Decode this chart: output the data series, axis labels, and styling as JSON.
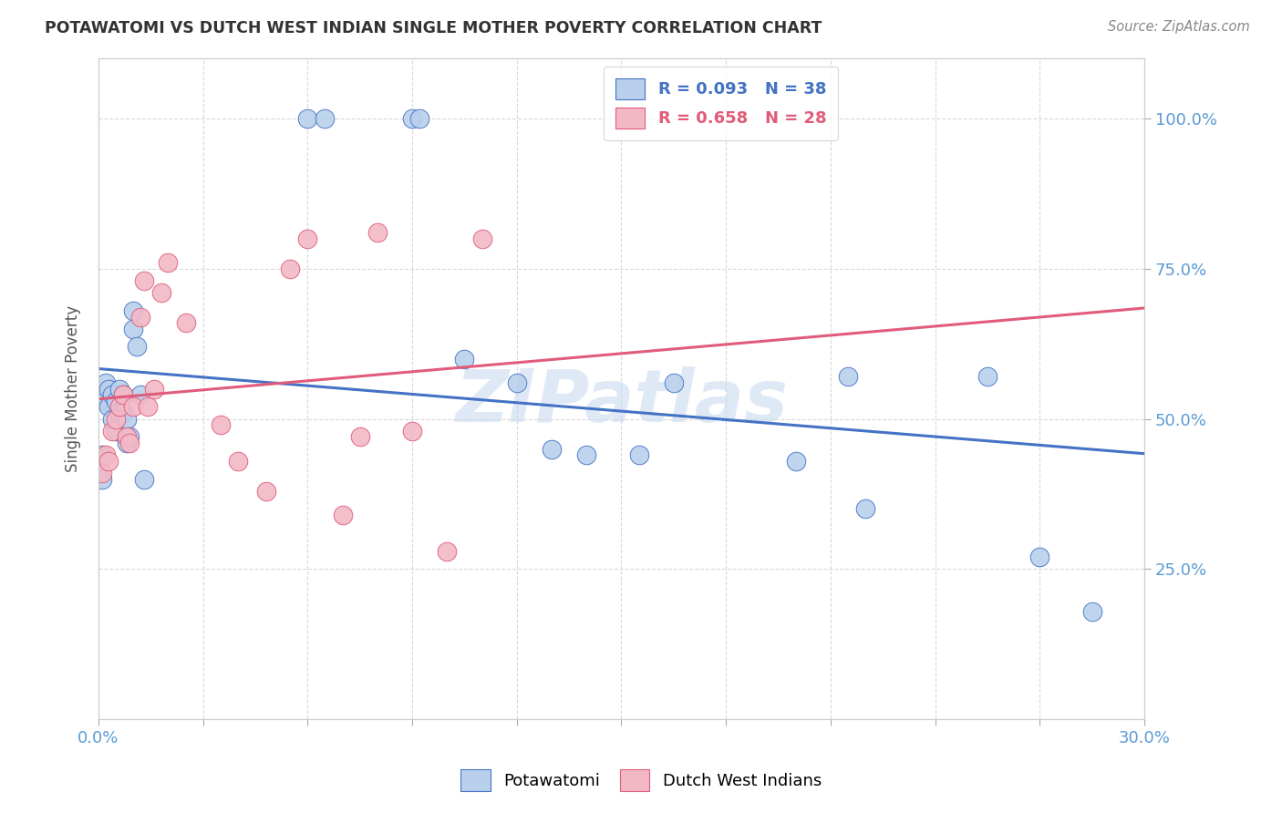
{
  "title": "POTAWATOMI VS DUTCH WEST INDIAN SINGLE MOTHER POVERTY CORRELATION CHART",
  "source": "Source: ZipAtlas.com",
  "ylabel": "Single Mother Poverty",
  "xlim": [
    0.0,
    0.3
  ],
  "ylim": [
    0.0,
    1.1
  ],
  "potawatomi_color": "#b8d0eb",
  "dutch_color": "#f2b8c6",
  "line_blue": "#4472c4",
  "line_pink": "#e05c7a",
  "watermark": "ZIPatlas",
  "background_color": "#ffffff",
  "grid_color": "#d9d9d9",
  "pot_x": [
    0.001,
    0.001,
    0.002,
    0.002,
    0.003,
    0.003,
    0.004,
    0.004,
    0.005,
    0.005,
    0.006,
    0.006,
    0.007,
    0.007,
    0.008,
    0.008,
    0.009,
    0.01,
    0.01,
    0.011,
    0.012,
    0.013,
    0.06,
    0.065,
    0.09,
    0.092,
    0.105,
    0.12,
    0.13,
    0.14,
    0.155,
    0.165,
    0.2,
    0.215,
    0.22,
    0.255,
    0.27,
    0.285
  ],
  "pot_y": [
    0.44,
    0.4,
    0.53,
    0.56,
    0.52,
    0.55,
    0.5,
    0.54,
    0.53,
    0.48,
    0.51,
    0.55,
    0.51,
    0.54,
    0.5,
    0.46,
    0.47,
    0.68,
    0.65,
    0.62,
    0.54,
    0.4,
    1.0,
    1.0,
    1.0,
    1.0,
    0.6,
    0.56,
    0.45,
    0.44,
    0.44,
    0.56,
    0.43,
    0.57,
    0.35,
    0.57,
    0.27,
    0.18
  ],
  "dutch_x": [
    0.001,
    0.002,
    0.003,
    0.004,
    0.005,
    0.006,
    0.007,
    0.008,
    0.009,
    0.01,
    0.012,
    0.013,
    0.014,
    0.016,
    0.018,
    0.02,
    0.025,
    0.035,
    0.04,
    0.048,
    0.055,
    0.06,
    0.07,
    0.075,
    0.08,
    0.09,
    0.1,
    0.11
  ],
  "dutch_y": [
    0.41,
    0.44,
    0.43,
    0.48,
    0.5,
    0.52,
    0.54,
    0.47,
    0.46,
    0.52,
    0.67,
    0.73,
    0.52,
    0.55,
    0.71,
    0.76,
    0.66,
    0.49,
    0.43,
    0.38,
    0.75,
    0.8,
    0.34,
    0.47,
    0.81,
    0.48,
    0.28,
    0.8
  ]
}
